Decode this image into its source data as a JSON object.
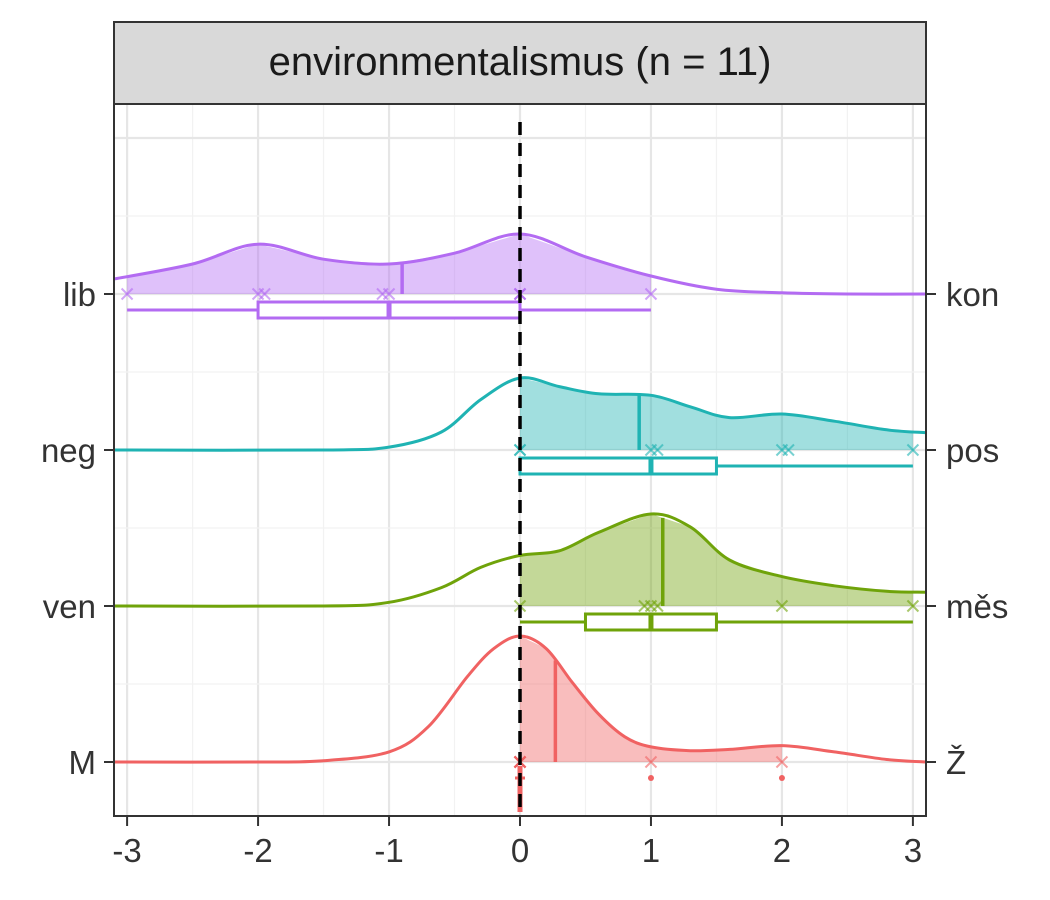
{
  "chart_data": {
    "type": "raincloud",
    "title": "environmentalismus (n = 11)",
    "xlabel": "",
    "ylabel": "",
    "xlim": [
      -3.1,
      3.1
    ],
    "x_ticks": [
      -3,
      -2,
      -1,
      0,
      1,
      2,
      3
    ],
    "x_tick_labels": [
      "-3",
      "-2",
      "-1",
      "0",
      "1",
      "2",
      "3"
    ],
    "reference_line_x": 0,
    "grid": true,
    "legend": "none",
    "rows": [
      {
        "left_label": "M",
        "right_label": "Ž",
        "color": "#F06262",
        "density": {
          "x": [
            -3.1,
            -2.0,
            -1.5,
            -1.0,
            -0.7,
            -0.4,
            -0.2,
            0.0,
            0.2,
            0.4,
            0.6,
            0.8,
            1.0,
            1.3,
            1.6,
            2.0,
            2.4,
            2.8,
            3.1
          ],
          "y": [
            0,
            0,
            0.01,
            0.08,
            0.28,
            0.68,
            0.9,
            1.0,
            0.9,
            0.63,
            0.38,
            0.2,
            0.12,
            0.09,
            0.1,
            0.13,
            0.08,
            0.02,
            0
          ]
        },
        "mean": 0.27,
        "points": [
          0,
          0,
          0,
          0,
          0,
          0,
          0,
          0,
          0,
          1,
          2
        ],
        "box": {
          "min": 0,
          "q1": 0,
          "median": 0,
          "q3": 0,
          "max": 0
        },
        "outliers": [
          1,
          2
        ]
      },
      {
        "left_label": "ven",
        "right_label": "měs",
        "color": "#6FA30A",
        "density": {
          "x": [
            -3.1,
            -1.5,
            -1.0,
            -0.6,
            -0.3,
            0.0,
            0.3,
            0.6,
            1.0,
            1.3,
            1.6,
            2.0,
            2.4,
            2.8,
            3.1
          ],
          "y": [
            0,
            0,
            0.04,
            0.2,
            0.42,
            0.55,
            0.6,
            0.8,
            1.0,
            0.86,
            0.5,
            0.32,
            0.22,
            0.16,
            0.15
          ]
        },
        "mean": 1.09,
        "points": [
          0,
          0.95,
          1,
          1.05,
          2,
          3
        ],
        "box": {
          "min": 0,
          "q1": 0.5,
          "median": 1,
          "q3": 1.5,
          "max": 3
        },
        "outliers": []
      },
      {
        "left_label": "neg",
        "right_label": "pos",
        "color": "#1FB3B3",
        "density": {
          "x": [
            -3.1,
            -1.5,
            -1.0,
            -0.6,
            -0.3,
            0.0,
            0.3,
            0.6,
            1.0,
            1.3,
            1.6,
            2.0,
            2.4,
            2.8,
            3.1
          ],
          "y": [
            0,
            0,
            0.04,
            0.25,
            0.7,
            1.0,
            0.88,
            0.78,
            0.76,
            0.6,
            0.45,
            0.5,
            0.4,
            0.28,
            0.24
          ]
        },
        "mean": 0.91,
        "points": [
          0,
          0,
          1,
          1.05,
          2,
          2.05,
          3
        ],
        "box": {
          "min": 0,
          "q1": 0,
          "median": 1,
          "q3": 1.5,
          "max": 3
        },
        "outliers": []
      },
      {
        "left_label": "lib",
        "right_label": "kon",
        "color": "#B36BF2",
        "density": {
          "x": [
            -3.1,
            -2.5,
            -2.0,
            -1.5,
            -1.0,
            -0.5,
            0.0,
            0.5,
            1.0,
            1.5,
            2.0,
            2.5,
            3.1
          ],
          "y": [
            0.25,
            0.5,
            0.83,
            0.58,
            0.5,
            0.68,
            1.0,
            0.62,
            0.3,
            0.08,
            0.02,
            0,
            0
          ]
        },
        "mean": -0.9,
        "points": [
          -3,
          -2,
          -1.95,
          -1.05,
          -1,
          0,
          0,
          0,
          1
        ],
        "box": {
          "min": -3,
          "q1": -2,
          "median": -1,
          "q3": 0,
          "max": 1
        },
        "outliers": []
      }
    ]
  }
}
